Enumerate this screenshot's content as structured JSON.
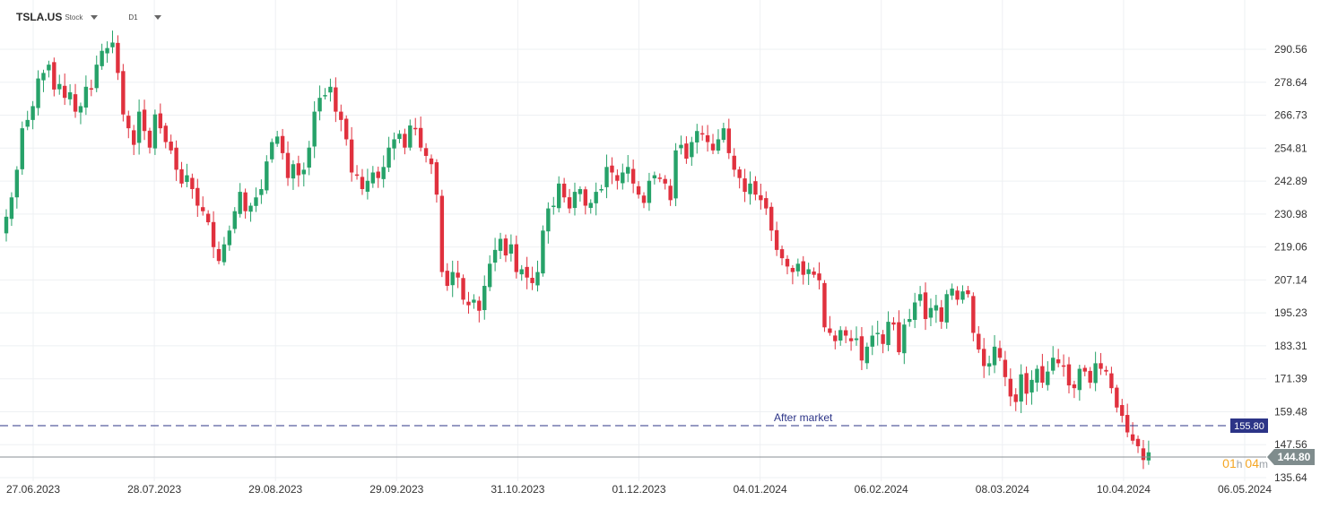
{
  "header": {
    "symbol": "TSLA.US",
    "symbol_type": "Stock",
    "timeframe": "D1"
  },
  "colors": {
    "up": "#26a269",
    "down": "#e0313e",
    "after_market": "#2c3487",
    "last_price": "#7f8c8d",
    "countdown_hours": "#f5a623",
    "grid": "#eef0f3"
  },
  "chart_data": {
    "type": "candlestick",
    "y_ticks": [
      "290.56",
      "278.64",
      "266.73",
      "254.81",
      "242.89",
      "230.98",
      "219.06",
      "207.14",
      "195.23",
      "183.31",
      "171.39",
      "159.48",
      "147.56",
      "135.64"
    ],
    "x_ticks": [
      "27.06.2023",
      "28.07.2023",
      "29.08.2023",
      "29.09.2023",
      "31.10.2023",
      "01.12.2023",
      "04.01.2024",
      "06.02.2024",
      "08.03.2024",
      "10.04.2024",
      "06.05.2024"
    ],
    "ylim": [
      133.5,
      296.0
    ],
    "after_market": {
      "label": "After market",
      "price": "155.80",
      "value": 155.8
    },
    "last_price": {
      "price": "144.80",
      "value": 144.8
    },
    "countdown": {
      "hours": "01",
      "h_unit": "h",
      "minutes": "04",
      "m_unit": "m"
    },
    "closes": [
      230.0,
      237.0,
      247.0,
      262.0,
      265.0,
      270.0,
      280.0,
      282.0,
      285.0,
      276.0,
      278.0,
      273.0,
      275.0,
      268.0,
      270.0,
      277.0,
      276.0,
      285.0,
      290.0,
      291.0,
      293.0,
      282.0,
      267.0,
      262.0,
      256.0,
      268.0,
      261.0,
      255.0,
      267.0,
      262.0,
      257.0,
      254.0,
      247.0,
      242.0,
      245.0,
      240.0,
      234.0,
      232.0,
      228.0,
      219.0,
      214.0,
      220.0,
      225.0,
      232.0,
      239.0,
      232.0,
      234.0,
      237.0,
      240.0,
      250.0,
      257.0,
      259.0,
      253.0,
      244.0,
      249.0,
      245.0,
      247.0,
      255.0,
      268.0,
      273.0,
      274.0,
      277.0,
      268.0,
      265.0,
      258.0,
      246.0,
      245.0,
      240.0,
      243.0,
      246.0,
      244.0,
      248.0,
      255.0,
      258.0,
      260.0,
      255.0,
      263.0,
      262.0,
      255.0,
      252.0,
      249.0,
      238.0,
      210.0,
      205.0,
      210.0,
      208.0,
      200.0,
      198.0,
      200.0,
      196.0,
      205.0,
      213.0,
      218.0,
      222.0,
      216.0,
      220.0,
      210.0,
      211.0,
      208.0,
      206.0,
      210.0,
      225.0,
      233.0,
      234.0,
      242.0,
      237.0,
      233.0,
      239.0,
      240.0,
      234.0,
      235.0,
      239.0,
      240.0,
      248.0,
      246.0,
      243.0,
      246.0,
      248.0,
      242.0,
      238.0,
      235.0,
      243.0,
      245.0,
      244.0,
      242.0,
      236.0,
      254.0,
      256.0,
      251.0,
      257.0,
      261.0,
      260.0,
      257.0,
      254.0,
      258.0,
      262.0,
      253.0,
      247.0,
      244.0,
      239.0,
      242.0,
      238.0,
      236.0,
      233.0,
      225.0,
      218.0,
      215.0,
      212.0,
      210.0,
      213.0,
      209.0,
      211.0,
      209.0,
      207.0,
      190.0,
      188.0,
      185.0,
      189.0,
      187.0,
      185.0,
      186.0,
      178.0,
      183.0,
      187.0,
      188.0,
      184.0,
      192.0,
      191.0,
      181.0,
      191.0,
      193.0,
      199.0,
      202.0,
      193.0,
      197.0,
      198.0,
      192.0,
      202.0,
      204.0,
      200.0,
      203.0,
      202.0,
      188.0,
      182.0,
      176.0,
      177.0,
      183.0,
      179.0,
      172.0,
      165.0,
      163.0,
      173.0,
      166.0,
      171.0,
      175.0,
      170.0,
      174.0,
      179.0,
      177.0,
      176.0,
      169.0,
      168.0,
      175.0,
      174.0,
      170.0,
      177.0,
      175.0,
      174.0,
      168.0,
      161.0,
      158.0,
      152.0,
      149.0,
      147.0,
      142.0,
      144.8
    ]
  }
}
